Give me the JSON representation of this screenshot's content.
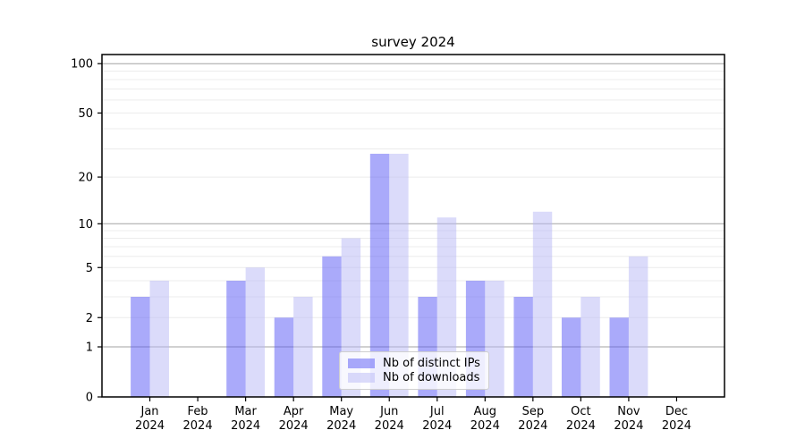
{
  "chart_data": {
    "type": "bar",
    "title": "survey 2024",
    "categories": [
      "Jan 2024",
      "Feb 2024",
      "Mar 2024",
      "Apr 2024",
      "May 2024",
      "Jun 2024",
      "Jul 2024",
      "Aug 2024",
      "Sep 2024",
      "Oct 2024",
      "Nov 2024",
      "Dec 2024"
    ],
    "series": [
      {
        "name": "Nb of distinct IPs",
        "color": "rgba(85,85,245,0.5)",
        "values": [
          3,
          0,
          4,
          2,
          6,
          28,
          3,
          4,
          3,
          2,
          2,
          0
        ]
      },
      {
        "name": "Nb of downloads",
        "color": "rgba(183,183,245,0.5)",
        "values": [
          4,
          0,
          5,
          3,
          8,
          28,
          11,
          4,
          12,
          3,
          6,
          0
        ]
      }
    ],
    "xlabel": "",
    "ylabel": "",
    "y_axis": {
      "scale": "log10(1+v)",
      "tick_labels": [
        0,
        1,
        2,
        5,
        10,
        20,
        50,
        100
      ],
      "major_gridlines": [
        1,
        10,
        100
      ],
      "minor_gridlines": [
        2,
        3,
        4,
        5,
        6,
        7,
        8,
        9,
        20,
        30,
        40,
        50,
        60,
        70,
        80,
        90
      ],
      "ylim": [
        0,
        113
      ]
    },
    "legend": {
      "position": "lower center",
      "entries": [
        "Nb of distinct IPs",
        "Nb of downloads"
      ]
    },
    "grid": "on"
  },
  "colors": {
    "grid_major": "#a3a3a3",
    "grid_minor": "#ececec",
    "axis": "#000000",
    "background": "#ffffff"
  }
}
